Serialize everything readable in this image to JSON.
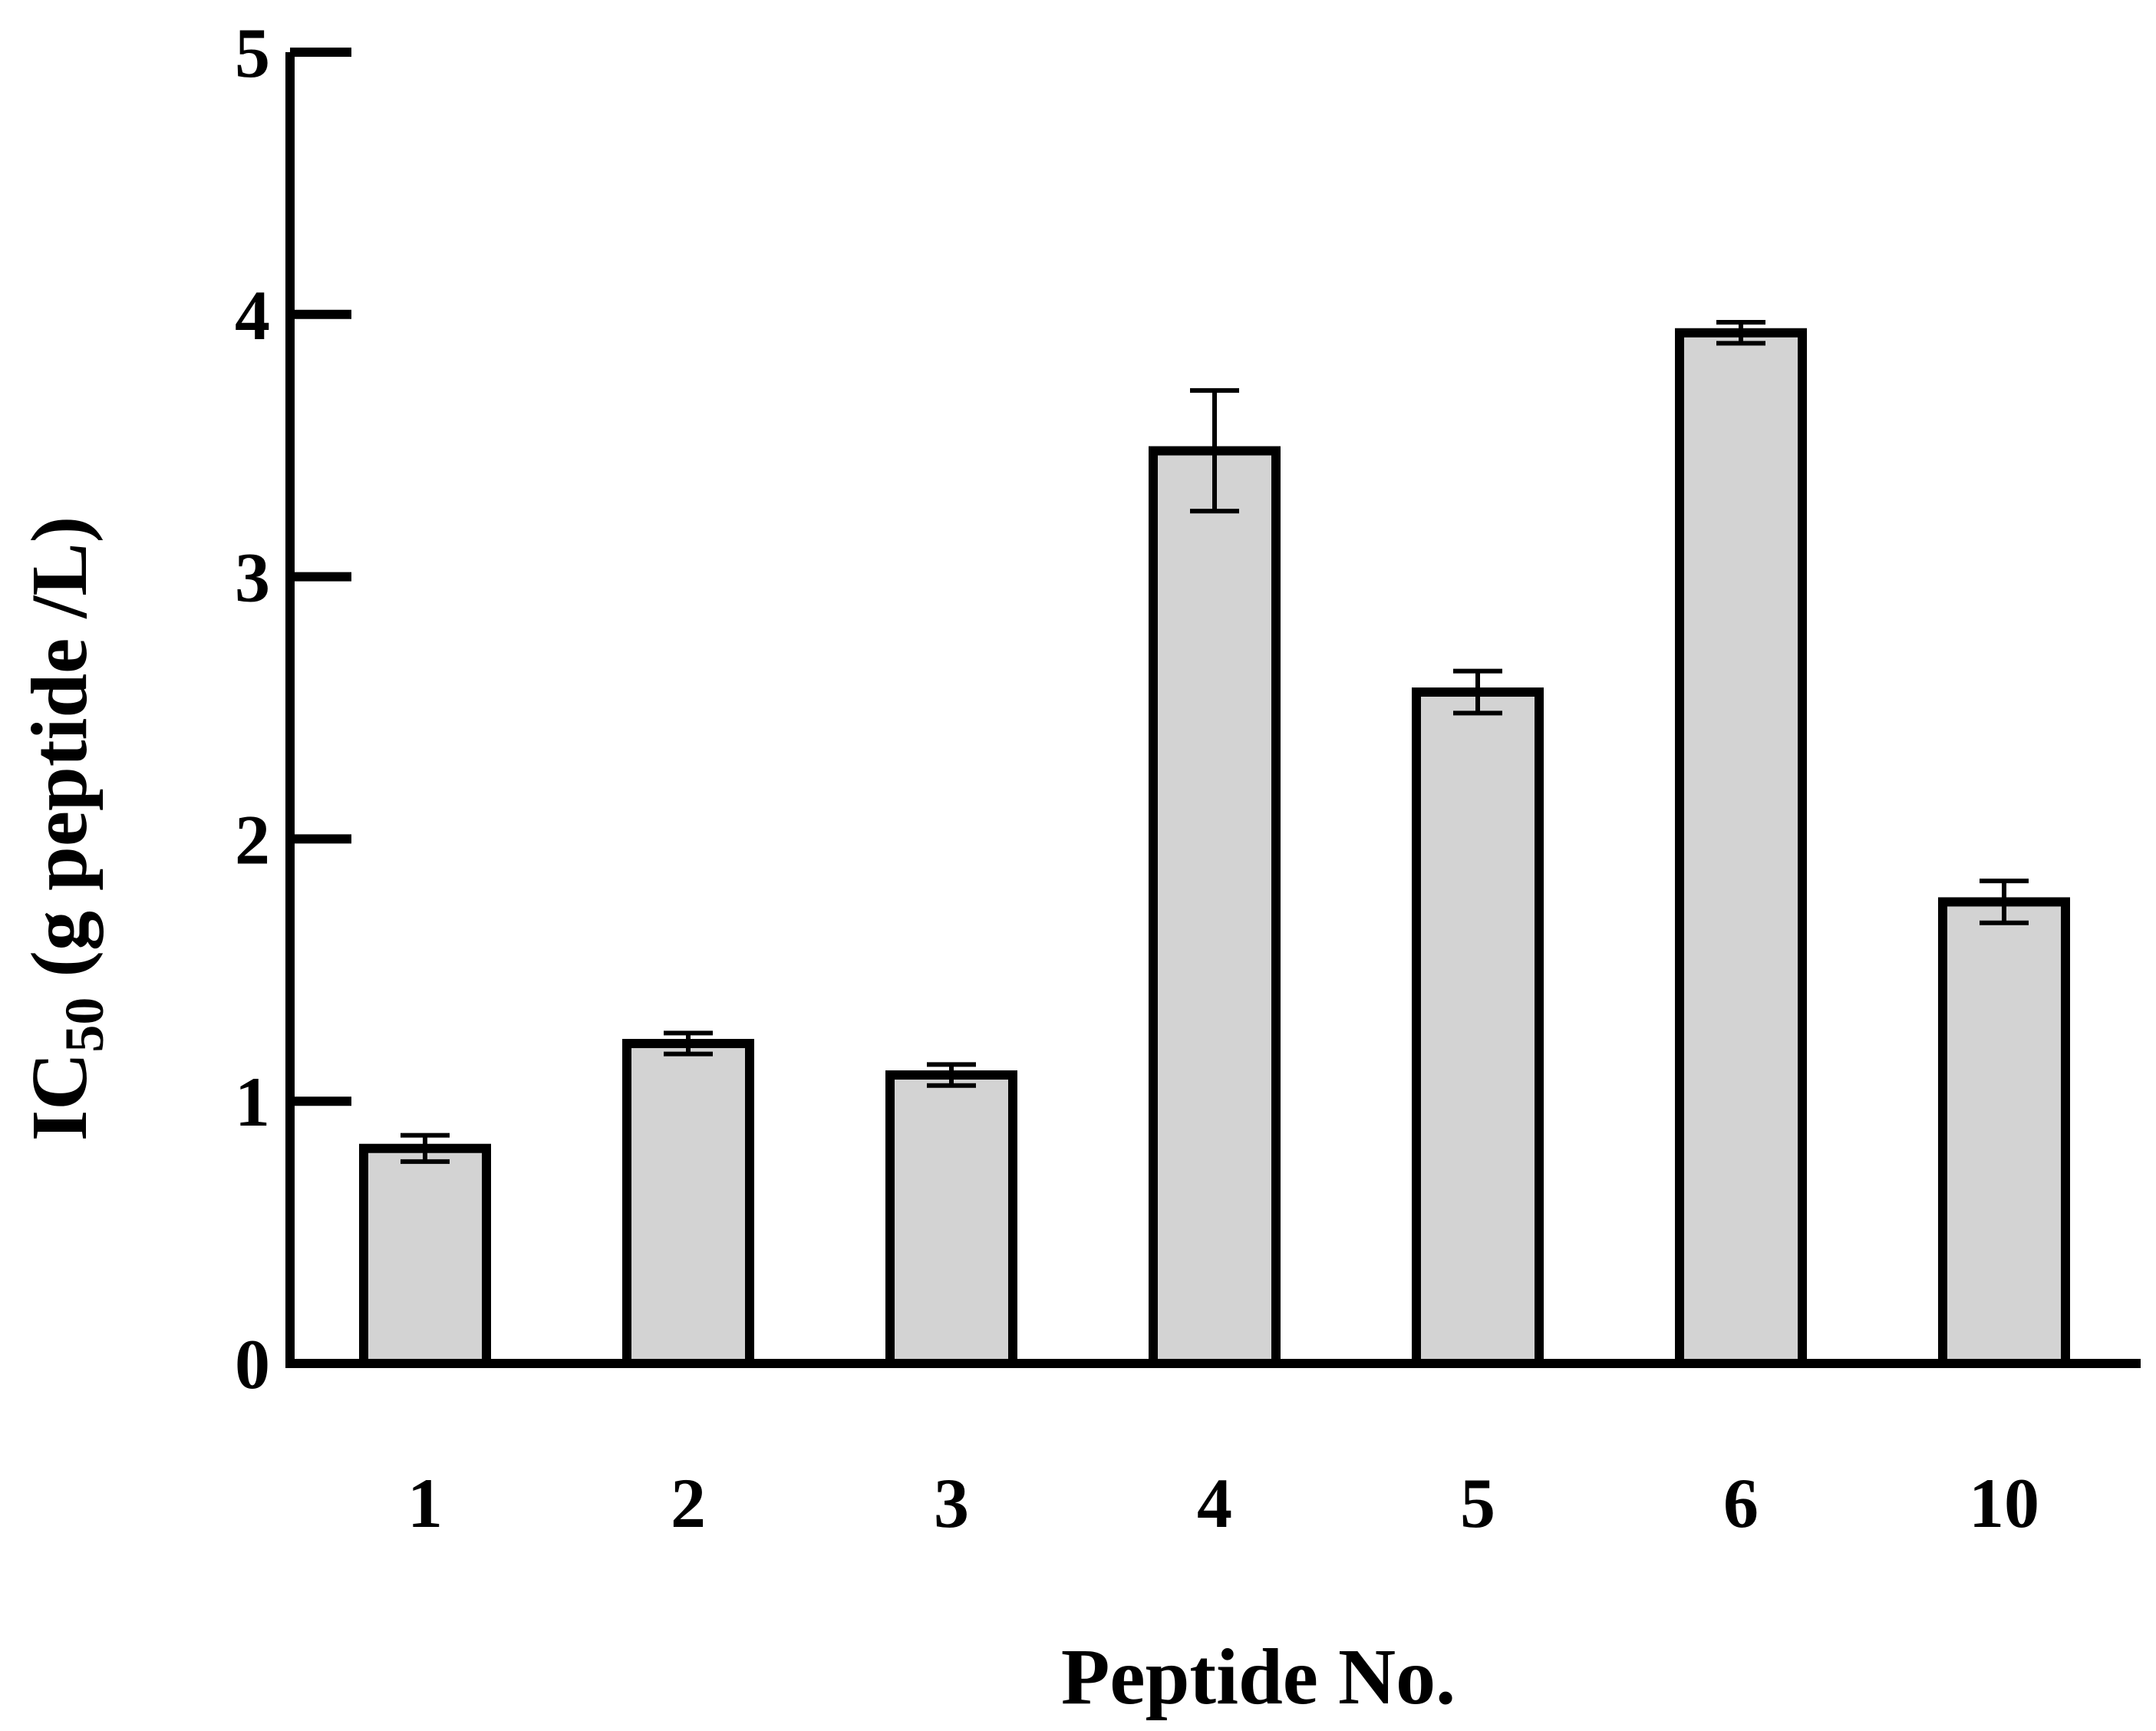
{
  "chart_data": {
    "type": "bar",
    "xlabel": "Peptide No.",
    "ylabel_main": "IC",
    "ylabel_sub": "50",
    "ylabel_rest": " (g peptide /L)",
    "categories": [
      "1",
      "2",
      "3",
      "4",
      "5",
      "6",
      "10"
    ],
    "series": [
      {
        "values": [
          0.82,
          1.22,
          1.1,
          3.48,
          2.56,
          3.93,
          1.76
        ],
        "errors": [
          0.05,
          0.04,
          0.04,
          0.23,
          0.08,
          0.04,
          0.08
        ]
      }
    ],
    "ylim": [
      0,
      5
    ],
    "yticks": [
      "0",
      "1",
      "2",
      "3",
      "4",
      "5"
    ],
    "bar_color": "#d3d3d3",
    "edge_color": "#000000",
    "grid": false
  }
}
